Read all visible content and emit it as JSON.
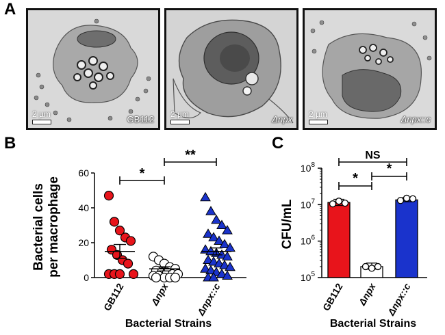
{
  "figure": {
    "panel_a": {
      "letter": "A",
      "images": [
        {
          "scale": "2 µm",
          "label": "GB112",
          "italic": false
        },
        {
          "scale": "2 µm",
          "label": "Δnpx",
          "italic": true
        },
        {
          "scale": "2 µm",
          "label": "Δnpx::c",
          "italic": true
        }
      ]
    },
    "panel_b": {
      "letter": "B"
    },
    "panel_c": {
      "letter": "C"
    }
  },
  "chart_data": [
    {
      "type": "scatter",
      "ylabel": "Bacterial cells per macrophage",
      "ylabel_lines": [
        "Bacterial cells",
        "per macrophage"
      ],
      "xlabel": "Bacterial Strains",
      "categories": [
        "GB112",
        "Δnpx",
        "Δnpx::c"
      ],
      "ylim": [
        0,
        60
      ],
      "yticks": [
        0,
        20,
        40,
        60
      ],
      "series": [
        {
          "category": "GB112",
          "color": "#e8141b",
          "marker": "circle",
          "mean": 15,
          "sem": 4,
          "values": [
            47,
            32,
            27,
            23,
            21,
            16,
            13,
            10,
            8,
            2,
            2,
            2,
            2
          ]
        },
        {
          "category": "Δnpx",
          "color": "#ffffff",
          "marker": "circle",
          "mean": 5,
          "sem": 1.2,
          "values": [
            12,
            10,
            8,
            6,
            5,
            4,
            3,
            3,
            2,
            2,
            1,
            1,
            0,
            0,
            0,
            0
          ]
        },
        {
          "category": "Δnpx::c",
          "color": "#1a33cc",
          "marker": "triangle",
          "mean": 15,
          "sem": 2,
          "values": [
            46,
            38,
            33,
            30,
            27,
            25,
            23,
            21,
            19,
            17,
            16,
            15,
            14,
            13,
            12,
            10,
            9,
            8,
            7,
            6,
            5,
            4,
            3,
            2,
            1,
            0,
            0
          ]
        }
      ],
      "significance": [
        {
          "from": 0,
          "to": 1,
          "label": "*"
        },
        {
          "from": 1,
          "to": 2,
          "label": "**"
        }
      ]
    },
    {
      "type": "bar",
      "ylabel": "CFU/mL",
      "xlabel": "Bacterial Strains",
      "categories": [
        "GB112",
        "Δnpx",
        "Δnpx::c"
      ],
      "yscale": "log",
      "ylim": [
        100000,
        100000000
      ],
      "ytick_labels": [
        {
          "base": "10",
          "exp": "5"
        },
        {
          "base": "10",
          "exp": "6"
        },
        {
          "base": "10",
          "exp": "7"
        },
        {
          "base": "10",
          "exp": "8"
        }
      ],
      "bars": [
        {
          "category": "GB112",
          "value": 11500000,
          "err_low": 9500000,
          "err_high": 14000000,
          "color": "#e8141b",
          "points": [
            10500000,
            12500000,
            11000000
          ]
        },
        {
          "category": "Δnpx",
          "value": 200000,
          "err_low": 170000,
          "err_high": 250000,
          "color": "#ffffff",
          "points": [
            200000,
            180000,
            200000
          ]
        },
        {
          "category": "Δnpx::c",
          "value": 13500000,
          "err_low": 12000000,
          "err_high": 15500000,
          "color": "#1a33cc",
          "points": [
            13000000,
            15000000,
            14500000
          ]
        }
      ],
      "significance": [
        {
          "from": 0,
          "to": 2,
          "label": "NS",
          "level": 2
        },
        {
          "from": 0,
          "to": 1,
          "label": "*",
          "level": 0
        },
        {
          "from": 1,
          "to": 2,
          "label": "*",
          "level": 1
        }
      ]
    }
  ]
}
